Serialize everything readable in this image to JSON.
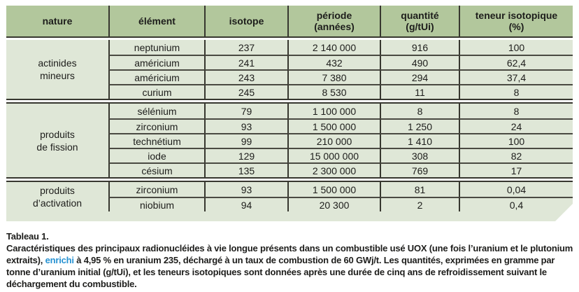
{
  "table": {
    "header": [
      {
        "key": "nature",
        "title": "nature",
        "sub": ""
      },
      {
        "key": "element",
        "title": "élément",
        "sub": ""
      },
      {
        "key": "isotope",
        "title": "isotope",
        "sub": ""
      },
      {
        "key": "periode",
        "title": "période",
        "sub": "(années)"
      },
      {
        "key": "quantite",
        "title": "quantité",
        "sub": "(g/tUi)"
      },
      {
        "key": "teneur",
        "title": "teneur isotopique",
        "sub": "(%)"
      }
    ],
    "groups": [
      {
        "nature": [
          "actinides",
          "mineurs"
        ],
        "rows": [
          {
            "element": "neptunium",
            "isotope": "237",
            "periode": "2 140 000",
            "quantite": "916",
            "teneur": "100"
          },
          {
            "element": "américium",
            "isotope": "241",
            "periode": "432",
            "quantite": "490",
            "teneur": "62,4"
          },
          {
            "element": "américium",
            "isotope": "243",
            "periode": "7 380",
            "quantite": "294",
            "teneur": "37,4"
          },
          {
            "element": "curium",
            "isotope": "245",
            "periode": "8 530",
            "quantite": "11",
            "teneur": "8"
          }
        ]
      },
      {
        "nature": [
          "produits",
          "de fission"
        ],
        "rows": [
          {
            "element": "sélénium",
            "isotope": "79",
            "periode": "1 100 000",
            "quantite": "8",
            "teneur": "8"
          },
          {
            "element": "zirconium",
            "isotope": "93",
            "periode": "1 500 000",
            "quantite": "1 250",
            "teneur": "24"
          },
          {
            "element": "technétium",
            "isotope": "99",
            "periode": "210 000",
            "quantite": "1 410",
            "teneur": "100"
          },
          {
            "element": "iode",
            "isotope": "129",
            "periode": "15 000 000",
            "quantite": "308",
            "teneur": "82"
          },
          {
            "element": "césium",
            "isotope": "135",
            "periode": "2 300 000",
            "quantite": "769",
            "teneur": "17"
          }
        ]
      },
      {
        "nature": [
          "produits",
          "d’activation"
        ],
        "rows": [
          {
            "element": "zirconium",
            "isotope": "93",
            "periode": "1 500 000",
            "quantite": "81",
            "teneur": "0,04"
          },
          {
            "element": "niobium",
            "isotope": "94",
            "periode": "20 300",
            "quantite": "2",
            "teneur": "0,4"
          }
        ]
      }
    ]
  },
  "caption": {
    "label": "Tableau 1.",
    "before_link": "Caractéristiques des principaux radionucléides à vie longue présents dans un combustible usé UOX (une fois l’uranium et le plutonium extraits), ",
    "link": "enrichi",
    "after_link": " à 4,95 % en uranium 235, déchargé à un taux de combustion de 60 GWj/t. Les quantités, exprimées en gramme par tonne d’uranium initial (g/tUi), et les teneurs isotopiques sont données après une durée de cinq ans de refroidissement suivant le déchargement du combustible."
  },
  "colors": {
    "header_bg": "#b2c79c",
    "body_bg": "#dfe7d7",
    "border": "#37372f",
    "row_separator": "#4a4a42",
    "text": "#1d1d1b",
    "link": "#2792d2"
  }
}
